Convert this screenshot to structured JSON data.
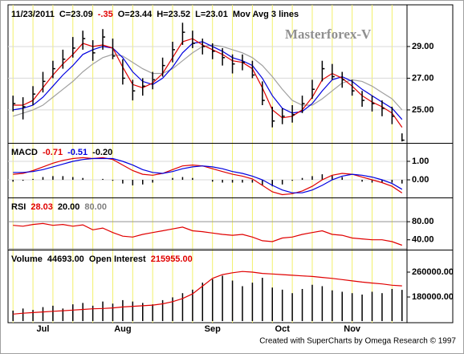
{
  "categories": [
    null,
    null,
    null,
    "Jul",
    null,
    null,
    null,
    null,
    null,
    null,
    null,
    "Aug",
    null,
    null,
    null,
    null,
    null,
    null,
    null,
    null,
    "Sep",
    null,
    null,
    null,
    null,
    null,
    null,
    "Oct",
    null,
    null,
    null,
    null,
    null,
    null,
    "Nov",
    null,
    null,
    null,
    null,
    null
  ],
  "watermark": "Masterforex-V",
  "footer": "Created with SuperCharts by Omega Research © 1997",
  "chart_data": [
    {
      "type": "ohlc",
      "header": [
        {
          "text": "11/23/2011",
          "color": "#000000"
        },
        {
          "text": "C=23.09",
          "color": "#000000"
        },
        {
          "text": "-.35",
          "color": "#e00000"
        },
        {
          "text": "O=23.44",
          "color": "#000000"
        },
        {
          "text": "H=23.52",
          "color": "#000000"
        },
        {
          "text": "L=23.01",
          "color": "#000000"
        },
        {
          "text": "Mov Avg 3 lines",
          "color": "#000000"
        }
      ],
      "color": "#000000",
      "high": [
        25.9,
        25.8,
        26.5,
        27.4,
        28.1,
        28.8,
        29.6,
        30.0,
        29.4,
        30.1,
        29.5,
        28.2,
        26.9,
        27.0,
        27.4,
        28.3,
        29.3,
        30.5,
        30.0,
        29.5,
        29.2,
        28.9,
        28.5,
        28.5,
        28.1,
        26.8,
        25.2,
        25.1,
        25.3,
        25.9,
        26.9,
        28.1,
        27.9,
        27.4,
        26.9,
        26.2,
        25.9,
        25.6,
        25.2,
        23.52
      ],
      "low": [
        24.9,
        24.4,
        25.3,
        26.1,
        27.0,
        27.6,
        28.3,
        28.8,
        28.1,
        28.8,
        28.2,
        26.6,
        25.6,
        25.9,
        26.3,
        27.1,
        28.0,
        29.1,
        28.9,
        28.5,
        28.2,
        27.8,
        27.3,
        27.5,
        27.0,
        25.3,
        23.9,
        24.1,
        24.2,
        24.8,
        25.7,
        26.8,
        26.9,
        26.4,
        25.9,
        25.2,
        24.9,
        24.6,
        24.1,
        23.01
      ],
      "close": [
        25.4,
        25.2,
        26.0,
        26.8,
        27.6,
        28.2,
        28.9,
        29.5,
        28.6,
        29.6,
        28.4,
        27.0,
        26.2,
        26.5,
        26.9,
        27.8,
        28.8,
        29.9,
        29.2,
        29.0,
        28.7,
        28.3,
        27.9,
        28.0,
        27.2,
        25.6,
        24.3,
        24.6,
        24.7,
        25.4,
        26.3,
        27.6,
        27.1,
        26.9,
        26.2,
        25.6,
        25.4,
        25.1,
        24.6,
        23.09
      ],
      "lines": [
        {
          "color": "#a0a0a0",
          "values": [
            24.6,
            24.8,
            25.0,
            25.3,
            25.8,
            26.3,
            26.8,
            27.4,
            27.9,
            28.3,
            28.5,
            28.4,
            28.0,
            27.6,
            27.3,
            27.3,
            27.6,
            28.1,
            28.6,
            29.0,
            29.1,
            29.0,
            28.8,
            28.6,
            28.3,
            27.8,
            27.1,
            26.3,
            25.6,
            25.3,
            25.3,
            25.7,
            26.2,
            26.7,
            26.9,
            26.8,
            26.5,
            26.1,
            25.7,
            25.0
          ]
        },
        {
          "color": "#0000e0",
          "values": [
            25.0,
            25.1,
            25.3,
            25.8,
            26.5,
            27.2,
            27.8,
            28.5,
            28.8,
            29.0,
            28.9,
            28.3,
            27.4,
            26.8,
            26.6,
            27.0,
            27.7,
            28.6,
            29.2,
            29.3,
            29.0,
            28.7,
            28.3,
            28.1,
            27.8,
            27.0,
            25.9,
            25.1,
            24.8,
            24.9,
            25.4,
            26.2,
            26.9,
            27.1,
            26.8,
            26.3,
            25.9,
            25.5,
            25.1,
            24.4
          ]
        },
        {
          "color": "#e00000",
          "values": [
            25.3,
            25.3,
            25.6,
            26.4,
            27.2,
            27.9,
            28.5,
            29.2,
            29.0,
            29.1,
            28.9,
            27.7,
            26.6,
            26.4,
            26.7,
            27.3,
            28.3,
            29.3,
            29.5,
            29.1,
            28.8,
            28.5,
            28.1,
            28.0,
            27.6,
            26.4,
            25.0,
            24.5,
            24.6,
            25.0,
            25.8,
            26.9,
            27.3,
            27.0,
            26.5,
            25.9,
            25.5,
            25.2,
            24.8,
            23.9
          ]
        }
      ],
      "ylim": [
        22.97,
        31.53
      ],
      "yticks": [
        {
          "value": 25,
          "label": "25.00"
        },
        {
          "value": 27,
          "label": "27.00"
        },
        {
          "value": 29,
          "label": "29.00"
        }
      ]
    },
    {
      "type": "macd",
      "header": [
        {
          "text": "MACD",
          "color": "#000000"
        },
        {
          "text": "-0.71",
          "color": "#e00000"
        },
        {
          "text": "-0.51",
          "color": "#0000e0"
        },
        {
          "text": "-0.20",
          "color": "#000000"
        }
      ],
      "lines": [
        {
          "color": "#e00000",
          "values": [
            0.3,
            0.35,
            0.5,
            0.7,
            0.9,
            1.05,
            1.15,
            1.2,
            1.15,
            1.2,
            1.1,
            0.8,
            0.5,
            0.3,
            0.25,
            0.35,
            0.55,
            0.75,
            0.8,
            0.75,
            0.6,
            0.45,
            0.3,
            0.2,
            0.05,
            -0.3,
            -0.65,
            -0.8,
            -0.75,
            -0.6,
            -0.35,
            0.0,
            0.25,
            0.35,
            0.3,
            0.15,
            0.0,
            -0.15,
            -0.35,
            -0.71
          ]
        },
        {
          "color": "#0000e0",
          "values": [
            0.4,
            0.4,
            0.45,
            0.55,
            0.7,
            0.85,
            1.0,
            1.1,
            1.15,
            1.15,
            1.15,
            1.0,
            0.8,
            0.55,
            0.4,
            0.35,
            0.45,
            0.6,
            0.7,
            0.75,
            0.7,
            0.6,
            0.45,
            0.35,
            0.2,
            0.0,
            -0.3,
            -0.55,
            -0.7,
            -0.7,
            -0.55,
            -0.3,
            0.0,
            0.2,
            0.3,
            0.25,
            0.15,
            0.0,
            -0.2,
            -0.51
          ]
        }
      ],
      "histogram": {
        "color": "#000000",
        "values": [
          -0.1,
          -0.05,
          0.05,
          0.15,
          0.2,
          0.2,
          0.15,
          0.1,
          0,
          0.05,
          -0.05,
          -0.2,
          -0.3,
          -0.25,
          -0.15,
          0,
          0.1,
          0.15,
          0.1,
          0,
          -0.1,
          -0.15,
          -0.15,
          -0.15,
          -0.15,
          -0.3,
          -0.35,
          -0.25,
          -0.05,
          0.1,
          0.2,
          0.3,
          0.25,
          0.15,
          0,
          -0.1,
          -0.15,
          -0.15,
          -0.15,
          -0.2
        ]
      },
      "ylim": [
        -0.91,
        1.91
      ],
      "yticks": [
        {
          "value": 0,
          "label": "0.00"
        },
        {
          "value": 1,
          "label": "1.00"
        }
      ]
    },
    {
      "type": "rsi",
      "header": [
        {
          "text": "RSI",
          "color": "#000000"
        },
        {
          "text": "28.03",
          "color": "#e00000"
        },
        {
          "text": "20.00",
          "color": "#000000"
        },
        {
          "text": "80.00",
          "color": "#808080"
        }
      ],
      "color": "#e00000",
      "values": [
        72,
        70,
        74,
        76,
        72,
        74,
        70,
        73,
        62,
        66,
        56,
        48,
        46,
        52,
        56,
        60,
        64,
        68,
        60,
        58,
        55,
        52,
        50,
        52,
        46,
        38,
        36,
        44,
        46,
        52,
        56,
        60,
        52,
        50,
        44,
        42,
        40,
        40,
        36,
        28.03
      ],
      "levels": [
        20,
        80
      ],
      "ylim": [
        20,
        130
      ],
      "yticks": [
        {
          "value": 40,
          "label": "40.00"
        },
        {
          "value": 80,
          "label": "80.00"
        }
      ]
    },
    {
      "type": "volume",
      "header": [
        {
          "text": "Volume",
          "color": "#000000"
        },
        {
          "text": "44693.00",
          "color": "#000000"
        },
        {
          "text": "Open Interest",
          "color": "#000000"
        },
        {
          "text": "215955.00",
          "color": "#e00000"
        }
      ],
      "volume": {
        "color": "#000000",
        "axis": "y2",
        "values": [
          15000,
          18000,
          16000,
          20000,
          22000,
          18000,
          24000,
          26000,
          22000,
          28000,
          25000,
          30000,
          28000,
          26000,
          24000,
          30000,
          34000,
          40000,
          45000,
          55000,
          60000,
          65000,
          58000,
          50000,
          55000,
          62000,
          48000,
          45000,
          40000,
          46000,
          52000,
          50000,
          44000,
          42000,
          40000,
          38000,
          42000,
          40000,
          46000,
          44693
        ]
      },
      "open_interest": {
        "color": "#e00000",
        "values": [
          125000,
          128000,
          130000,
          132000,
          134000,
          136000,
          138000,
          140000,
          142000,
          143000,
          145000,
          148000,
          150000,
          152000,
          154000,
          158000,
          165000,
          175000,
          190000,
          215000,
          240000,
          252000,
          258000,
          262000,
          260000,
          256000,
          254000,
          252000,
          250000,
          248000,
          246000,
          243000,
          240000,
          236000,
          232000,
          228000,
          225000,
          222000,
          218000,
          215955
        ]
      },
      "y2lim": [
        0,
        100000
      ],
      "ylim": [
        102600,
        327100
      ],
      "yticks": [
        {
          "value": 180000,
          "label": "180000.00"
        },
        {
          "value": 260000,
          "label": "260000.00"
        }
      ]
    }
  ]
}
